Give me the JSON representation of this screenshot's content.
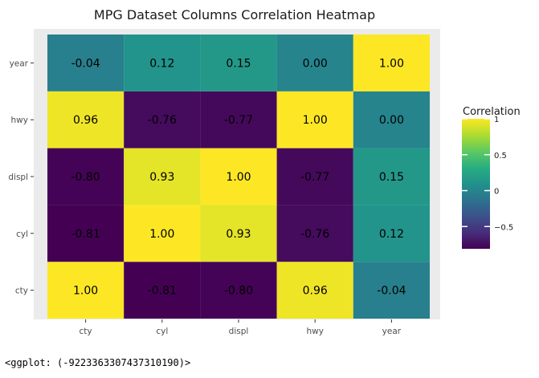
{
  "output_text": "<ggplot: (-9223363307437310190)>",
  "chart_data": {
    "type": "heatmap",
    "title": "MPG Dataset Columns Correlation Heatmap",
    "xlabel": "",
    "ylabel": "",
    "x_categories": [
      "cty",
      "cyl",
      "displ",
      "hwy",
      "year"
    ],
    "y_categories": [
      "cty",
      "cyl",
      "displ",
      "hwy",
      "year"
    ],
    "values": [
      [
        1.0,
        -0.81,
        -0.8,
        0.96,
        -0.04
      ],
      [
        -0.81,
        1.0,
        0.93,
        -0.76,
        0.12
      ],
      [
        -0.8,
        0.93,
        1.0,
        -0.77,
        0.15
      ],
      [
        0.96,
        -0.76,
        -0.77,
        1.0,
        0.0
      ],
      [
        -0.04,
        0.12,
        0.15,
        0.0,
        1.0
      ]
    ],
    "labels": [
      [
        "1.00",
        "-0.81",
        "-0.80",
        "0.96",
        "-0.04"
      ],
      [
        "-0.81",
        "1.00",
        "0.93",
        "-0.76",
        "0.12"
      ],
      [
        "-0.80",
        "0.93",
        "1.00",
        "-0.77",
        "0.15"
      ],
      [
        "0.96",
        "-0.76",
        "-0.77",
        "1.00",
        "0.00"
      ],
      [
        "-0.04",
        "0.12",
        "0.15",
        "0.00",
        "1.00"
      ]
    ],
    "colorscale": "viridis",
    "color_range": [
      -0.81,
      1.0
    ],
    "legend": {
      "title": "Correlation",
      "ticks": [
        1,
        0.5,
        0,
        -0.5
      ],
      "tick_labels": [
        "1",
        "0.5",
        "0",
        "−0.5"
      ],
      "placement": "right"
    },
    "panel_background": "#ebebeb",
    "grid": true
  }
}
